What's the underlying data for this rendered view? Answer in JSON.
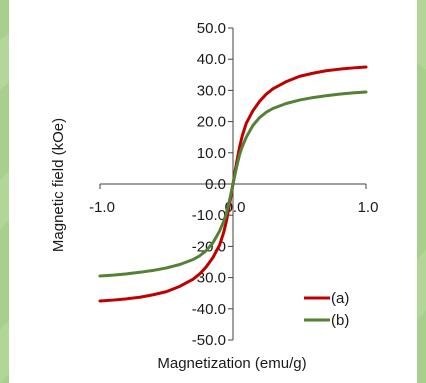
{
  "colors": {
    "background_green": "#a9cf8f",
    "background_stripe": "#b9d99f",
    "axis": "#404040",
    "series_a": "#c00000",
    "series_b": "#548235"
  },
  "chart_data": {
    "type": "line",
    "xlabel": "Magnetization (emu/g)",
    "ylabel": "Magnetic field (kOe)",
    "xlim": [
      -1.0,
      1.0
    ],
    "ylim": [
      -50.0,
      50.0
    ],
    "x_ticks": [
      "-1.0",
      "0.0",
      "1.0"
    ],
    "y_ticks": [
      "-50.0",
      "-40.0",
      "-30.0",
      "-20.0",
      "-10.0",
      "0.0",
      "10.0",
      "20.0",
      "30.0",
      "40.0",
      "50.0"
    ],
    "grid": false,
    "legend_position": "bottom-right",
    "series": [
      {
        "name": "(a)",
        "color": "#c00000",
        "x": [
          -1.0,
          -0.9,
          -0.8,
          -0.7,
          -0.6,
          -0.5,
          -0.4,
          -0.3,
          -0.25,
          -0.2,
          -0.15,
          -0.1,
          -0.07,
          -0.05,
          -0.03,
          -0.015,
          0.0,
          0.015,
          0.03,
          0.05,
          0.07,
          0.1,
          0.15,
          0.2,
          0.25,
          0.3,
          0.4,
          0.5,
          0.6,
          0.7,
          0.8,
          0.9,
          1.0
        ],
        "y": [
          -37.5,
          -37.2,
          -36.8,
          -36.3,
          -35.5,
          -34.5,
          -32.8,
          -30.5,
          -28.8,
          -26.5,
          -23.5,
          -19.5,
          -15.5,
          -12.0,
          -7.5,
          -3.8,
          0.0,
          3.8,
          7.5,
          12.0,
          15.5,
          19.5,
          23.5,
          26.5,
          28.8,
          30.5,
          32.8,
          34.5,
          35.5,
          36.3,
          36.8,
          37.2,
          37.5
        ]
      },
      {
        "name": "(b)",
        "color": "#548235",
        "x": [
          -1.0,
          -0.9,
          -0.8,
          -0.7,
          -0.6,
          -0.5,
          -0.4,
          -0.3,
          -0.25,
          -0.2,
          -0.15,
          -0.1,
          -0.07,
          -0.05,
          -0.03,
          -0.015,
          0.0,
          0.015,
          0.03,
          0.05,
          0.07,
          0.1,
          0.15,
          0.2,
          0.25,
          0.3,
          0.4,
          0.5,
          0.6,
          0.7,
          0.8,
          0.9,
          1.0
        ],
        "y": [
          -29.5,
          -29.2,
          -28.8,
          -28.3,
          -27.7,
          -26.9,
          -25.8,
          -24.2,
          -23.0,
          -21.3,
          -18.8,
          -15.0,
          -12.0,
          -9.5,
          -6.0,
          -3.0,
          0.0,
          3.0,
          6.0,
          9.5,
          12.0,
          15.0,
          18.8,
          21.3,
          23.0,
          24.2,
          25.8,
          26.9,
          27.7,
          28.3,
          28.8,
          29.2,
          29.5
        ]
      }
    ]
  }
}
